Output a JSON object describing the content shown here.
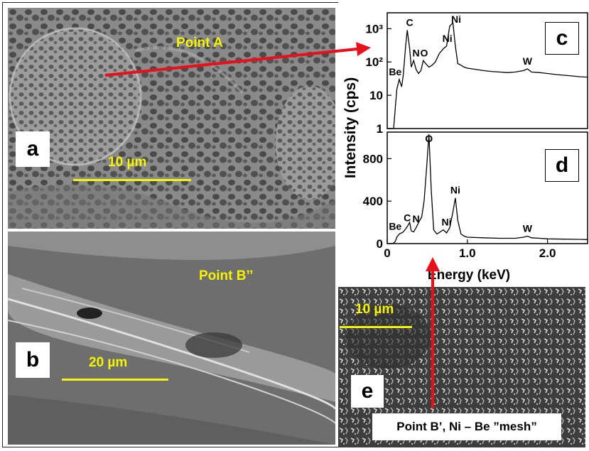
{
  "panels": {
    "a": {
      "label": "a",
      "point_label": "Point A",
      "scale_text": "10 µm"
    },
    "b": {
      "label": "b",
      "point_label": "Point B’’",
      "scale_text": "20 µm"
    },
    "c": {
      "label": "c"
    },
    "d": {
      "label": "d"
    },
    "e": {
      "label": "e",
      "scale_text": "10 µm",
      "caption": "Point B’, Ni – Be ”mesh”"
    }
  },
  "colors": {
    "arrow": "#e8101a",
    "scale": "#f5f500"
  },
  "chart_data": [
    {
      "type": "line",
      "panel": "c",
      "ylabel": "Intensity (cps)",
      "yscale": "log",
      "ylim": [
        1,
        3000
      ],
      "xlim": [
        0,
        2.5
      ],
      "yticks": [
        "1",
        "10",
        "10²",
        "10³"
      ],
      "x": [
        0.0,
        0.08,
        0.1,
        0.12,
        0.15,
        0.18,
        0.2,
        0.23,
        0.25,
        0.28,
        0.3,
        0.33,
        0.36,
        0.39,
        0.42,
        0.45,
        0.48,
        0.52,
        0.56,
        0.6,
        0.65,
        0.7,
        0.74,
        0.78,
        0.82,
        0.85,
        0.88,
        0.92,
        0.96,
        1.0,
        1.1,
        1.2,
        1.3,
        1.4,
        1.5,
        1.6,
        1.7,
        1.75,
        1.8,
        1.9,
        2.0,
        2.1,
        2.2,
        2.3,
        2.4,
        2.5
      ],
      "y": [
        1,
        1,
        4,
        15,
        30,
        18,
        40,
        300,
        900,
        250,
        70,
        110,
        60,
        45,
        55,
        110,
        90,
        70,
        80,
        100,
        180,
        250,
        300,
        1200,
        1500,
        300,
        90,
        80,
        70,
        65,
        60,
        55,
        52,
        50,
        48,
        50,
        55,
        62,
        50,
        48,
        45,
        42,
        40,
        38,
        36,
        35
      ],
      "peak_labels": [
        "Be",
        "C",
        "N",
        "O",
        "Ni",
        "Ni",
        "W"
      ]
    },
    {
      "type": "line",
      "panel": "d",
      "xlabel": "Energy (keV)",
      "ylim": [
        0,
        1050
      ],
      "xlim": [
        0,
        2.5
      ],
      "yticks": [
        "0",
        "400",
        "800"
      ],
      "xticks": [
        "0",
        "1.0",
        "2.0"
      ],
      "x": [
        0.0,
        0.05,
        0.08,
        0.1,
        0.12,
        0.15,
        0.2,
        0.25,
        0.28,
        0.3,
        0.33,
        0.36,
        0.4,
        0.43,
        0.46,
        0.49,
        0.52,
        0.55,
        0.58,
        0.62,
        0.66,
        0.7,
        0.74,
        0.78,
        0.82,
        0.85,
        0.88,
        0.92,
        0.96,
        1.0,
        1.2,
        1.4,
        1.6,
        1.7,
        1.75,
        1.8,
        1.9,
        2.0,
        2.2,
        2.4,
        2.5
      ],
      "y": [
        0,
        0,
        5,
        20,
        60,
        90,
        110,
        160,
        200,
        120,
        110,
        150,
        210,
        250,
        400,
        700,
        1030,
        500,
        130,
        90,
        110,
        130,
        100,
        150,
        300,
        430,
        220,
        90,
        70,
        60,
        55,
        50,
        50,
        60,
        70,
        55,
        50,
        45,
        42,
        40,
        38
      ],
      "peak_labels": [
        "Be",
        "C",
        "N",
        "O",
        "Ni",
        "Ni",
        "W"
      ]
    }
  ]
}
